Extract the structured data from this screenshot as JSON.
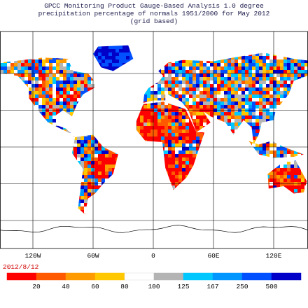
{
  "header": {
    "title_lines": [
      "GPCC Monitoring Product Gauge-Based Analysis 1.0 degree",
      "precipitation percentage of normals 1951/2000 for May  2012",
      "(grid based)"
    ]
  },
  "map": {
    "lon_labels": [
      "120W",
      "60W",
      "0",
      "60E",
      "120E"
    ]
  },
  "footer": {
    "date": "2012/8/12"
  },
  "legend": {
    "labels": [
      "20",
      "40",
      "60",
      "80",
      "100",
      "125",
      "167",
      "250",
      "500"
    ],
    "colors": [
      "#ff0000",
      "#ff5a00",
      "#ff9a00",
      "#ffc800",
      "#ffffff",
      "#b4b4b4",
      "#00c8ff",
      "#0096ff",
      "#0050ff",
      "#0000c8"
    ]
  }
}
